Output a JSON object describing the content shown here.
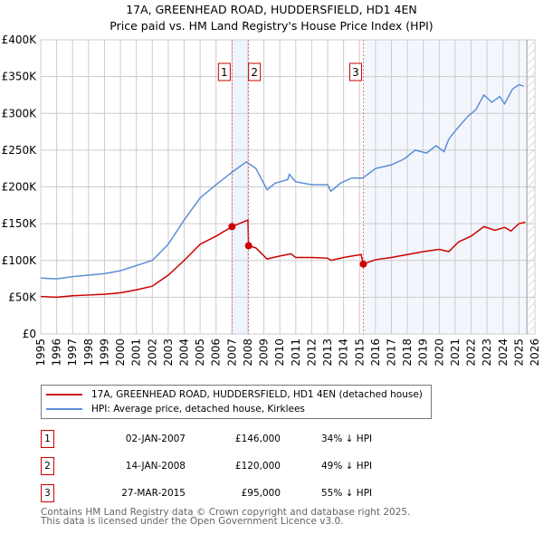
{
  "chart_data": {
    "type": "line",
    "title": "17A, GREENHEAD ROAD, HUDDERSFIELD, HD1 4EN",
    "subtitle": "Price paid vs. HM Land Registry's House Price Index (HPI)",
    "xlim": [
      1995,
      2026
    ],
    "ylim": [
      0,
      400000
    ],
    "yticks": [
      {
        "v": 0,
        "label": "£0"
      },
      {
        "v": 50000,
        "label": "£50K"
      },
      {
        "v": 100000,
        "label": "£100K"
      },
      {
        "v": 150000,
        "label": "£150K"
      },
      {
        "v": 200000,
        "label": "£200K"
      },
      {
        "v": 250000,
        "label": "£250K"
      },
      {
        "v": 300000,
        "label": "£300K"
      },
      {
        "v": 350000,
        "label": "£350K"
      },
      {
        "v": 400000,
        "label": "£400K"
      }
    ],
    "xticks": [
      "1995",
      "1996",
      "1997",
      "1998",
      "1999",
      "2000",
      "2001",
      "2002",
      "2003",
      "2004",
      "2005",
      "2006",
      "2007",
      "2008",
      "2009",
      "2010",
      "2011",
      "2012",
      "2013",
      "2014",
      "2015",
      "2016",
      "2017",
      "2018",
      "2019",
      "2020",
      "2021",
      "2022",
      "2023",
      "2024",
      "2025",
      "2026"
    ],
    "grid": true,
    "series": [
      {
        "name": "17A, GREENHEAD ROAD, HUDDERSFIELD, HD1 4EN (detached house)",
        "color": "#cc0000",
        "x": [
          1995,
          1996,
          1997,
          1998,
          1999,
          2000,
          2001,
          2002,
          2003,
          2004,
          2005,
          2006,
          2007.0,
          2008.0,
          2008.04,
          2008.5,
          2009.2,
          2010,
          2010.7,
          2011,
          2012,
          2013,
          2013.2,
          2014,
          2015.1,
          2015.24,
          2016,
          2017,
          2018,
          2019,
          2020,
          2020.6,
          2021.2,
          2022,
          2022.8,
          2023.5,
          2024.1,
          2024.5,
          2025,
          2025.4
        ],
        "y": [
          51000,
          50000,
          52000,
          53000,
          54000,
          56000,
          60000,
          65000,
          80000,
          100000,
          122000,
          133000,
          146000,
          155000,
          120000,
          117000,
          102000,
          106000,
          109000,
          104000,
          104000,
          103000,
          100000,
          104000,
          108000,
          95000,
          101000,
          104000,
          108000,
          112000,
          115000,
          112000,
          125000,
          133000,
          146000,
          141000,
          145000,
          140000,
          150000,
          152000
        ]
      },
      {
        "name": "HPI: Average price, detached house, Kirklees",
        "color": "#5b8fd6",
        "x": [
          1995,
          1996,
          1997,
          1998,
          1999,
          2000,
          2001,
          2002,
          2003,
          2004,
          2005,
          2006,
          2007,
          2007.9,
          2008.5,
          2009.2,
          2009.7,
          2010.5,
          2010.6,
          2011,
          2012,
          2013,
          2013.2,
          2013.8,
          2014.5,
          2015.2,
          2016,
          2017,
          2017.8,
          2018.5,
          2019.2,
          2019.8,
          2020.3,
          2020.6,
          2021,
          2021.8,
          2022.3,
          2022.8,
          2023.3,
          2023.8,
          2024.1,
          2024.6,
          2025,
          2025.3
        ],
        "y": [
          76000,
          75000,
          78000,
          80000,
          82000,
          86000,
          93000,
          100000,
          122000,
          155000,
          185000,
          203000,
          220000,
          234000,
          225000,
          196000,
          205000,
          210000,
          217000,
          207000,
          203000,
          203000,
          194000,
          205000,
          212000,
          212000,
          225000,
          230000,
          238000,
          250000,
          246000,
          256000,
          248000,
          265000,
          276000,
          296000,
          305000,
          325000,
          315000,
          323000,
          313000,
          333000,
          339000,
          337000
        ]
      }
    ],
    "sales": [
      {
        "id": "1",
        "x": 2007.0,
        "y": 146000,
        "date": "02-JAN-2007",
        "price": "£146,000",
        "hpi": "34% ↓ HPI"
      },
      {
        "id": "2",
        "x": 2008.04,
        "y": 120000,
        "date": "14-JAN-2008",
        "price": "£120,000",
        "hpi": "49% ↓ HPI"
      },
      {
        "id": "3",
        "x": 2015.24,
        "y": 95000,
        "date": "27-MAR-2015",
        "price": "£95,000",
        "hpi": "55% ↓ HPI"
      }
    ],
    "legend_placement": "below"
  },
  "legend": {
    "red": "17A, GREENHEAD ROAD, HUDDERSFIELD, HD1 4EN (detached house)",
    "blue": "HPI: Average price, detached house, Kirklees"
  },
  "footer": {
    "line1": "Contains HM Land Registry data © Crown copyright and database right 2025.",
    "line2": "This data is licensed under the Open Government Licence v3.0."
  }
}
